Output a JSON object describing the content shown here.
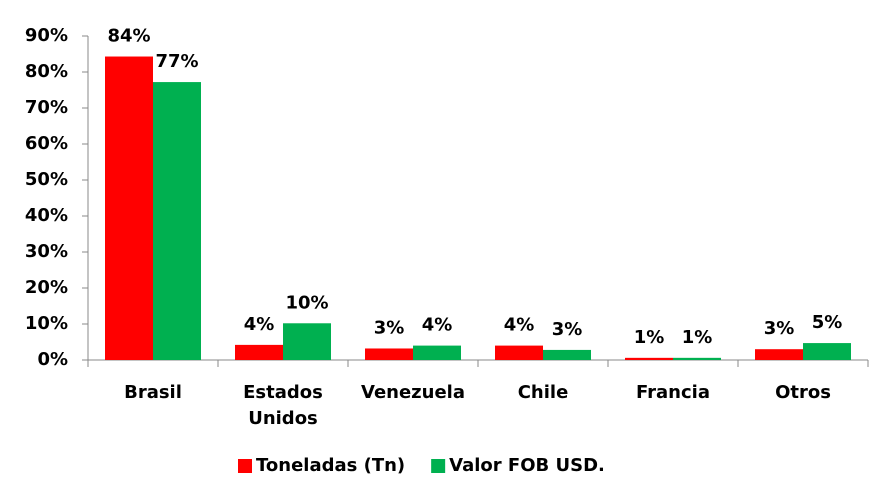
{
  "chart_data": {
    "type": "bar",
    "categories": [
      "Brasil",
      "Estados Unidos",
      "Venezuela",
      "Chile",
      "Francia",
      "Otros"
    ],
    "series": [
      {
        "name": "Toneladas (Tn)",
        "color": "#ff0000",
        "values": [
          84.3,
          4.2,
          3.2,
          4.0,
          0.6,
          3.0
        ],
        "value_labels": [
          "84%",
          "4%",
          "3%",
          "4%",
          "1%",
          "3%"
        ]
      },
      {
        "name": "Valor FOB USD.",
        "color": "#00b050",
        "values": [
          77.2,
          10.2,
          4.0,
          2.8,
          0.6,
          4.7
        ],
        "value_labels": [
          "77%",
          "10%",
          "4%",
          "3%",
          "1%",
          "5%"
        ]
      }
    ],
    "ylim": [
      0,
      90
    ],
    "yticks": [
      {
        "value": 0,
        "label": "0%"
      },
      {
        "value": 10,
        "label": "10%"
      },
      {
        "value": 20,
        "label": "20%"
      },
      {
        "value": 30,
        "label": "30%"
      },
      {
        "value": 40,
        "label": "40%"
      },
      {
        "value": 50,
        "label": "50%"
      },
      {
        "value": 60,
        "label": "60%"
      },
      {
        "value": 70,
        "label": "70%"
      },
      {
        "value": 80,
        "label": "80%"
      },
      {
        "value": 90,
        "label": "90%"
      }
    ],
    "legend": "bottom"
  }
}
